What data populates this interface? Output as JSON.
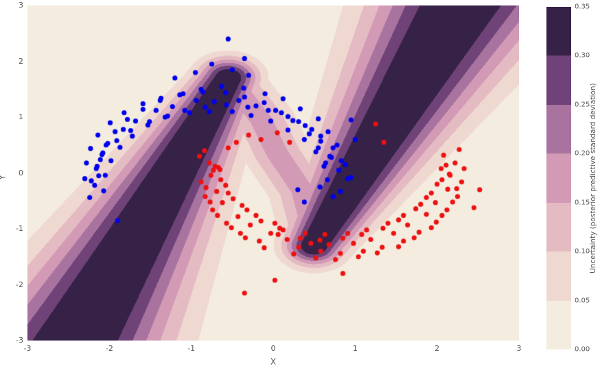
{
  "chart_data": {
    "type": "scatter",
    "title": "",
    "xlabel": "X",
    "ylabel": "Y",
    "xlim": [
      -3,
      3
    ],
    "ylim": [
      -3,
      3
    ],
    "xticks": [
      -3,
      -2,
      -1,
      0,
      1,
      2,
      3
    ],
    "xtick_labels": [
      "-3",
      "-2",
      "-1",
      "0",
      "1",
      "2",
      "3"
    ],
    "yticks": [
      -3,
      -2,
      -1,
      0,
      1,
      2,
      3
    ],
    "ytick_labels": [
      "-3",
      "-2",
      "-1",
      "0",
      "1",
      "2",
      "3"
    ],
    "plot_bg": "#f3ecdf",
    "grid": false,
    "legend": "none",
    "series": [
      {
        "name": "class-0-blue",
        "color": "#0000ee",
        "marker_radius": 3.6,
        "points": [
          [
            0.82,
            -0.33
          ],
          [
            0.66,
            -0.12
          ],
          [
            0.95,
            -0.08
          ],
          [
            0.73,
            -0.42
          ],
          [
            0.57,
            -0.25
          ],
          [
            0.8,
            0.05
          ],
          [
            0.64,
            0.18
          ],
          [
            0.91,
            -0.1
          ],
          [
            0.71,
            0.28
          ],
          [
            0.88,
            0.15
          ],
          [
            0.69,
            0.3
          ],
          [
            0.55,
            0.45
          ],
          [
            0.83,
            0.22
          ],
          [
            0.62,
            0.12
          ],
          [
            0.78,
            0.5
          ],
          [
            0.58,
            0.57
          ],
          [
            0.44,
            0.7
          ],
          [
            0.73,
            0.45
          ],
          [
            0.52,
            0.38
          ],
          [
            0.67,
            0.74
          ],
          [
            0.47,
            0.78
          ],
          [
            0.31,
            0.92
          ],
          [
            0.58,
            0.66
          ],
          [
            0.38,
            0.6
          ],
          [
            0.55,
            0.97
          ],
          [
            0.24,
            0.94
          ],
          [
            0.1,
            1.08
          ],
          [
            0.39,
            0.85
          ],
          [
            0.18,
            0.77
          ],
          [
            0.33,
            1.15
          ],
          [
            0.03,
            1.12
          ],
          [
            -0.11,
            1.26
          ],
          [
            0.18,
            1.01
          ],
          [
            -0.03,
            0.93
          ],
          [
            0.12,
            1.33
          ],
          [
            -0.21,
            1.2
          ],
          [
            -0.35,
            1.36
          ],
          [
            -0.06,
            1.12
          ],
          [
            -0.27,
            1.03
          ],
          [
            -0.1,
            1.42
          ],
          [
            -0.42,
            1.3
          ],
          [
            -0.58,
            1.44
          ],
          [
            -0.31,
            1.18
          ],
          [
            -0.5,
            1.1
          ],
          [
            -0.36,
            1.52
          ],
          [
            -0.72,
            1.28
          ],
          [
            -0.86,
            1.45
          ],
          [
            -0.57,
            1.22
          ],
          [
            -0.78,
            1.1
          ],
          [
            -0.63,
            1.55
          ],
          [
            -0.94,
            1.3
          ],
          [
            -1.1,
            1.42
          ],
          [
            -0.83,
            1.18
          ],
          [
            -1.02,
            1.08
          ],
          [
            -0.88,
            1.5
          ],
          [
            -1.23,
            1.19
          ],
          [
            -1.37,
            1.34
          ],
          [
            -1.08,
            1.12
          ],
          [
            -1.29,
            1.02
          ],
          [
            -1.14,
            1.4
          ],
          [
            -1.43,
            1.12
          ],
          [
            -1.59,
            1.24
          ],
          [
            -1.32,
            1.0
          ],
          [
            -1.51,
            0.92
          ],
          [
            -1.38,
            1.3
          ],
          [
            -1.68,
            0.93
          ],
          [
            -1.82,
            1.08
          ],
          [
            -1.53,
            0.86
          ],
          [
            -1.74,
            0.76
          ],
          [
            -1.59,
            1.14
          ],
          [
            -1.83,
            0.78
          ],
          [
            -1.99,
            0.9
          ],
          [
            -1.72,
            0.66
          ],
          [
            -1.91,
            0.58
          ],
          [
            -1.78,
            0.96
          ],
          [
            -2.02,
            0.53
          ],
          [
            -2.14,
            0.68
          ],
          [
            -1.87,
            0.46
          ],
          [
            -2.08,
            0.36
          ],
          [
            -1.93,
            0.74
          ],
          [
            -2.09,
            0.33
          ],
          [
            -2.23,
            0.44
          ],
          [
            -1.98,
            0.22
          ],
          [
            -2.15,
            0.12
          ],
          [
            -2.04,
            0.5
          ],
          [
            -2.16,
            0.08
          ],
          [
            -2.28,
            0.18
          ],
          [
            -2.05,
            -0.04
          ],
          [
            -2.22,
            -0.14
          ],
          [
            -2.11,
            0.24
          ],
          [
            -2.18,
            -0.22
          ],
          [
            -2.3,
            -0.1
          ],
          [
            -2.07,
            -0.32
          ],
          [
            -2.24,
            -0.44
          ],
          [
            -2.13,
            -0.05
          ],
          [
            -0.55,
            2.4
          ],
          [
            -0.35,
            2.05
          ],
          [
            -1.9,
            -0.85
          ],
          [
            0.95,
            0.95
          ],
          [
            1.0,
            0.6
          ],
          [
            0.38,
            -0.52
          ],
          [
            0.3,
            -0.3
          ],
          [
            -0.75,
            1.95
          ],
          [
            -0.95,
            1.8
          ],
          [
            -0.5,
            1.85
          ],
          [
            -1.2,
            1.7
          ],
          [
            -0.3,
            1.75
          ]
        ]
      },
      {
        "name": "class-1-red",
        "color": "#ee1111",
        "marker_radius": 3.6,
        "points": [
          [
            2.22,
            0.18
          ],
          [
            2.08,
            0.32
          ],
          [
            2.33,
            0.08
          ],
          [
            2.15,
            -0.02
          ],
          [
            2.27,
            0.42
          ],
          [
            2.16,
            -0.04
          ],
          [
            2.3,
            -0.16
          ],
          [
            2.05,
            0.08
          ],
          [
            2.24,
            -0.28
          ],
          [
            2.11,
            0.14
          ],
          [
            2.13,
            -0.29
          ],
          [
            2.25,
            -0.42
          ],
          [
            2.0,
            -0.2
          ],
          [
            2.19,
            -0.52
          ],
          [
            2.06,
            -0.12
          ],
          [
            1.98,
            -0.53
          ],
          [
            2.12,
            -0.66
          ],
          [
            1.87,
            -0.44
          ],
          [
            2.06,
            -0.76
          ],
          [
            1.93,
            -0.36
          ],
          [
            1.87,
            -0.74
          ],
          [
            1.99,
            -0.88
          ],
          [
            1.74,
            -0.64
          ],
          [
            1.93,
            -0.98
          ],
          [
            1.8,
            -0.56
          ],
          [
            1.64,
            -0.93
          ],
          [
            1.78,
            -1.06
          ],
          [
            1.53,
            -0.84
          ],
          [
            1.72,
            -1.16
          ],
          [
            1.59,
            -0.76
          ],
          [
            1.47,
            -1.08
          ],
          [
            1.59,
            -1.22
          ],
          [
            1.34,
            -0.99
          ],
          [
            1.53,
            -1.32
          ],
          [
            1.4,
            -0.9
          ],
          [
            1.19,
            -1.19
          ],
          [
            1.33,
            -1.33
          ],
          [
            1.08,
            -1.1
          ],
          [
            1.27,
            -1.43
          ],
          [
            1.14,
            -1.02
          ],
          [
            0.98,
            -1.26
          ],
          [
            1.1,
            -1.4
          ],
          [
            0.85,
            -1.17
          ],
          [
            1.04,
            -1.5
          ],
          [
            0.91,
            -1.08
          ],
          [
            0.68,
            -1.28
          ],
          [
            0.82,
            -1.44
          ],
          [
            0.57,
            -1.2
          ],
          [
            0.76,
            -1.55
          ],
          [
            0.63,
            -1.1
          ],
          [
            0.46,
            -1.26
          ],
          [
            0.58,
            -1.4
          ],
          [
            0.33,
            -1.17
          ],
          [
            0.52,
            -1.52
          ],
          [
            0.39,
            -1.08
          ],
          [
            0.17,
            -1.19
          ],
          [
            0.31,
            -1.33
          ],
          [
            0.06,
            -1.1
          ],
          [
            0.25,
            -1.45
          ],
          [
            0.12,
            -1.02
          ],
          [
            -0.03,
            -1.08
          ],
          [
            -0.17,
            -1.22
          ],
          [
            0.08,
            -0.99
          ],
          [
            -0.11,
            -1.34
          ],
          [
            0.02,
            -0.9
          ],
          [
            -0.28,
            -0.93
          ],
          [
            -0.4,
            -1.08
          ],
          [
            -0.15,
            -0.86
          ],
          [
            -0.34,
            -1.16
          ],
          [
            -0.21,
            -0.76
          ],
          [
            -0.43,
            -0.78
          ],
          [
            -0.57,
            -0.9
          ],
          [
            -0.32,
            -0.66
          ],
          [
            -0.51,
            -0.98
          ],
          [
            -0.38,
            -0.58
          ],
          [
            -0.62,
            -0.53
          ],
          [
            -0.74,
            -0.66
          ],
          [
            -0.49,
            -0.46
          ],
          [
            -0.68,
            -0.76
          ],
          [
            -0.55,
            -0.36
          ],
          [
            -0.69,
            -0.33
          ],
          [
            -0.83,
            -0.42
          ],
          [
            -0.58,
            -0.22
          ],
          [
            -0.77,
            -0.52
          ],
          [
            -0.64,
            -0.12
          ],
          [
            -0.76,
            -0.04
          ],
          [
            -0.88,
            -0.16
          ],
          [
            -0.65,
            0.06
          ],
          [
            -0.82,
            -0.26
          ],
          [
            -0.71,
            0.12
          ],
          [
            -0.78,
            0.18
          ],
          [
            -0.9,
            0.3
          ],
          [
            -0.67,
            0.1
          ],
          [
            -0.84,
            0.4
          ],
          [
            -0.73,
            0.05
          ],
          [
            -0.45,
            0.55
          ],
          [
            -0.3,
            0.68
          ],
          [
            -0.15,
            0.6
          ],
          [
            0.05,
            0.72
          ],
          [
            -0.55,
            0.45
          ],
          [
            0.2,
            0.55
          ],
          [
            1.25,
            0.88
          ],
          [
            1.35,
            0.55
          ],
          [
            2.52,
            -0.3
          ],
          [
            2.45,
            -0.62
          ],
          [
            -0.35,
            -2.15
          ],
          [
            0.02,
            -1.92
          ],
          [
            0.85,
            -1.8
          ]
        ]
      }
    ],
    "background_field": {
      "type": "filled-contour",
      "quantity": "posterior predictive standard deviation",
      "levels": [
        0,
        0.05,
        0.1,
        0.15,
        0.2,
        0.25,
        0.3,
        0.35
      ],
      "colors": [
        "#f3ecdf",
        "#eed8d0",
        "#e4bac3",
        "#d29ab5",
        "#a8739f",
        "#6f4377",
        "#362147"
      ],
      "bands": [
        {
          "kind": "segment",
          "p1": [
            -2.8,
            -4.0
          ],
          "p2": [
            -0.55,
            1.7
          ],
          "amp": 0.37,
          "w0": 0.35,
          "wgrow": 0.14,
          "grow_from": "p2"
        },
        {
          "kind": "segment",
          "p1": [
            0.5,
            -1.3
          ],
          "p2": [
            2.6,
            3.8
          ],
          "amp": 0.37,
          "w0": 0.35,
          "wgrow": 0.14,
          "grow_from": "p1"
        },
        {
          "kind": "polyline",
          "pts": [
            [
              -0.55,
              1.7
            ],
            [
              -0.15,
              0.95
            ],
            [
              0.05,
              0.35
            ],
            [
              0.35,
              -0.3
            ],
            [
              0.5,
              -1.1
            ]
          ],
          "amp": 0.17,
          "w0": 0.38
        }
      ]
    },
    "colorbar": {
      "label": "Uncertainty (posterior predictive standard deviation)",
      "tick_values": [
        0,
        0.05,
        0.1,
        0.15,
        0.2,
        0.25,
        0.3,
        0.35
      ],
      "tick_labels": [
        "0.00",
        "0.05",
        "0.10",
        "0.15",
        "0.20",
        "0.25",
        "0.30",
        "0.35"
      ],
      "vmin": 0,
      "vmax": 0.35
    }
  }
}
